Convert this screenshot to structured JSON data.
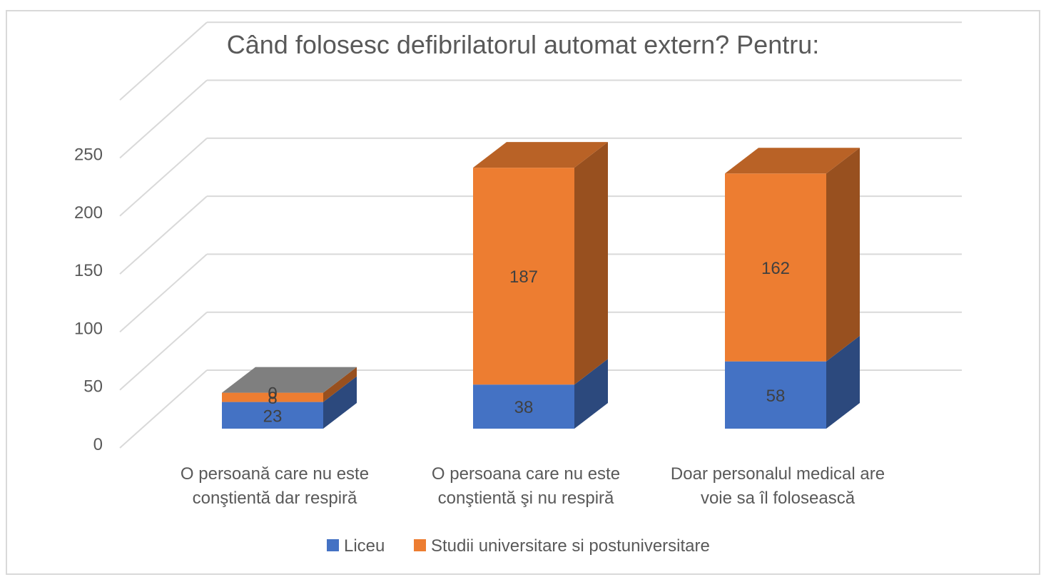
{
  "chart_data": {
    "type": "bar",
    "stacked": true,
    "style": "3d-column",
    "title": "Când folosesc defibrilatorul automat extern? Pentru:",
    "categories": [
      [
        "O persoană care nu este",
        "conştientă dar respiră"
      ],
      [
        "O persoana care nu este",
        "conştientă şi nu respiră"
      ],
      [
        "Doar personalul medical are",
        "voie sa îl folosească"
      ]
    ],
    "series": [
      {
        "name": "Liceu",
        "values": [
          23,
          38,
          58
        ],
        "color": "#4472c4"
      },
      {
        "name": "Studii universitare si postuniversitare",
        "values": [
          8,
          187,
          162
        ],
        "color": "#ed7d31"
      },
      {
        "name": "",
        "values": [
          0,
          0,
          0
        ],
        "color": "#7f7f7f",
        "legend": false
      }
    ],
    "yticks": [
      0,
      50,
      100,
      150,
      200,
      250
    ],
    "ylim": [
      0,
      300
    ],
    "grid": true,
    "legend_position": "bottom",
    "xlabel": "",
    "ylabel": ""
  }
}
